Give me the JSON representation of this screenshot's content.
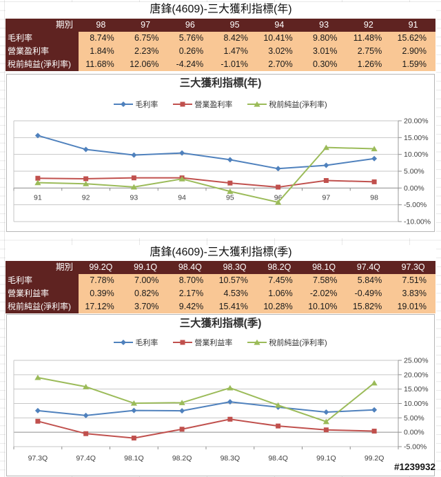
{
  "page": {
    "watermark": "#1239932"
  },
  "colors": {
    "table_header_bg": "#5F2321",
    "table_cell_bg": "#F9C795",
    "table_header_text": "#FFFFFF",
    "series_blue": "#4F81BD",
    "series_red": "#C0504D",
    "series_green": "#9BBB59",
    "gridline": "#C6C6C6",
    "zero_axis": "#8C8C8C",
    "axis_text": "#3F3F3F"
  },
  "sections": [
    {
      "title": "唐鋒(4609)-三大獲利指標(年)",
      "table": {
        "header": [
          "期別",
          "98",
          "97",
          "96",
          "95",
          "94",
          "93",
          "92",
          "91"
        ],
        "rows": [
          {
            "label": "毛利率",
            "values": [
              "8.74%",
              "6.75%",
              "5.76%",
              "8.42%",
              "10.41%",
              "9.80%",
              "11.48%",
              "15.62%"
            ]
          },
          {
            "label": "營業盈利率",
            "values": [
              "1.84%",
              "2.23%",
              "0.26%",
              "1.47%",
              "3.02%",
              "3.01%",
              "2.75%",
              "2.90%"
            ]
          },
          {
            "label": "稅前純益(淨利率)",
            "values": [
              "11.68%",
              "12.06%",
              "-4.24%",
              "-1.01%",
              "2.70%",
              "0.30%",
              "1.26%",
              "1.59%"
            ]
          }
        ]
      }
    },
    {
      "title": "唐鋒(4609)-三大獲利指標(季)",
      "table": {
        "header": [
          "期別",
          "99.2Q",
          "99.1Q",
          "98.4Q",
          "98.3Q",
          "98.2Q",
          "98.1Q",
          "97.4Q",
          "97.3Q"
        ],
        "rows": [
          {
            "label": "毛利率",
            "values": [
              "7.78%",
              "7.00%",
              "8.70%",
              "10.57%",
              "7.45%",
              "7.58%",
              "5.84%",
              "7.51%"
            ]
          },
          {
            "label": "營業利益率",
            "values": [
              "0.39%",
              "0.82%",
              "2.17%",
              "4.53%",
              "1.06%",
              "-2.02%",
              "-0.49%",
              "3.83%"
            ]
          },
          {
            "label": "稅前純益(淨利率)",
            "values": [
              "17.12%",
              "3.70%",
              "9.42%",
              "15.41%",
              "10.28%",
              "10.10%",
              "15.82%",
              "19.01%"
            ]
          }
        ]
      }
    }
  ],
  "chart_data": [
    {
      "type": "line",
      "title": "三大獲利指標(年)",
      "categories": [
        "91",
        "92",
        "93",
        "94",
        "95",
        "96",
        "97",
        "98"
      ],
      "series": [
        {
          "name": "毛利率",
          "color": "#4F81BD",
          "marker": "diamond",
          "values": [
            15.62,
            11.48,
            9.8,
            10.41,
            8.42,
            5.76,
            6.75,
            8.74
          ]
        },
        {
          "name": "營業盈利率",
          "color": "#C0504D",
          "marker": "square",
          "values": [
            2.9,
            2.75,
            3.01,
            3.02,
            1.47,
            0.26,
            2.23,
            1.84
          ]
        },
        {
          "name": "稅前純益(淨利率)",
          "color": "#9BBB59",
          "marker": "triangle",
          "values": [
            1.59,
            1.26,
            0.3,
            2.7,
            -1.01,
            -4.24,
            12.06,
            11.68
          ]
        }
      ],
      "xlabel": "",
      "ylabel": "",
      "ylim": [
        -10,
        20
      ],
      "ytick_step": 5,
      "ytick_format": "percent-2dp",
      "grid": true,
      "legend_position": "top",
      "value_axis_side": "right",
      "x_label_position": "next-to-axis"
    },
    {
      "type": "line",
      "title": "三大獲利指標(季)",
      "categories": [
        "97.3Q",
        "97.4Q",
        "98.1Q",
        "98.2Q",
        "98.3Q",
        "98.4Q",
        "99.1Q",
        "99.2Q"
      ],
      "series": [
        {
          "name": "毛利率",
          "color": "#4F81BD",
          "marker": "diamond",
          "values": [
            7.51,
            5.84,
            7.58,
            7.45,
            10.57,
            8.7,
            7.0,
            7.78
          ]
        },
        {
          "name": "營業利益率",
          "color": "#C0504D",
          "marker": "square",
          "values": [
            3.83,
            -0.49,
            -2.02,
            1.06,
            4.53,
            2.17,
            0.82,
            0.39
          ]
        },
        {
          "name": "稅前純益(淨利率)",
          "color": "#9BBB59",
          "marker": "triangle",
          "values": [
            19.01,
            15.82,
            10.1,
            10.28,
            15.41,
            9.42,
            3.7,
            17.12
          ]
        }
      ],
      "xlabel": "",
      "ylabel": "",
      "ylim": [
        -5,
        25
      ],
      "ytick_step": 5,
      "ytick_format": "percent-2dp",
      "grid": true,
      "legend_position": "top",
      "value_axis_side": "right",
      "x_label_position": "low"
    }
  ]
}
